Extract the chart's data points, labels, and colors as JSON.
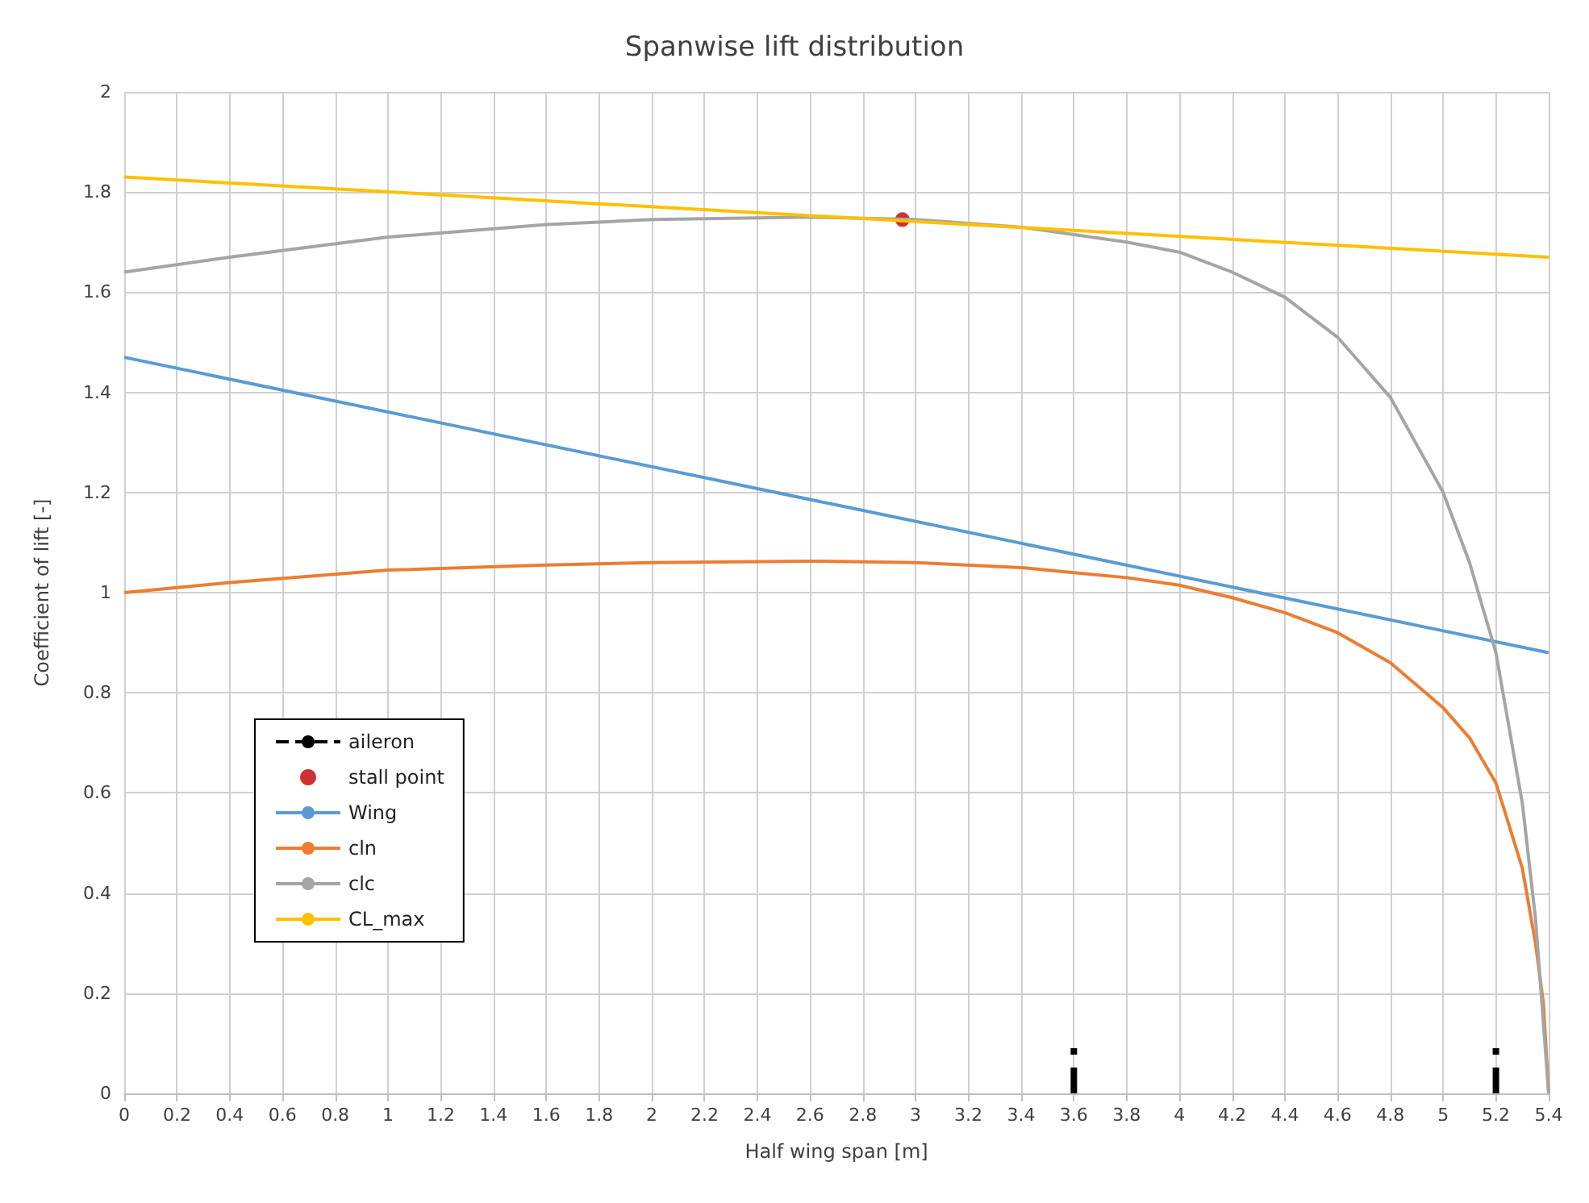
{
  "chart_data": {
    "type": "line",
    "title": "Spanwise lift distribution",
    "xlabel": "Half wing span [m]",
    "ylabel": "Coefficient of lift [-]",
    "xlim": [
      0,
      5.4
    ],
    "xticks": [
      0,
      0.2,
      0.4,
      0.6,
      0.8,
      1,
      1.2,
      1.4,
      1.6,
      1.8,
      2,
      2.2,
      2.4,
      2.6,
      2.8,
      3,
      3.2,
      3.4,
      3.6,
      3.8,
      4,
      4.2,
      4.4,
      4.6,
      4.8,
      5,
      5.2,
      5.4
    ],
    "ylim": [
      0,
      2
    ],
    "yticks": [
      0,
      0.2,
      0.4,
      0.6,
      0.8,
      1,
      1.2,
      1.4,
      1.6,
      1.8,
      2
    ],
    "grid": true,
    "legend": "bottom left",
    "series": [
      {
        "name": "aileron",
        "color": "#000000",
        "line_style": "dashed",
        "marker": "none",
        "x": [
          3.6,
          3.6,
          4.4,
          5.2,
          5.2
        ],
        "values": [
          0,
          0.09,
          null,
          0,
          0.09
        ]
      },
      {
        "name": "stall point",
        "type": "scatter",
        "color": "#c00000",
        "marker": "circle",
        "x": [
          2.95
        ],
        "values": [
          1.745
        ]
      },
      {
        "name": "Wing",
        "color": "#5b9bd5",
        "line_style": "solid",
        "marker": "none",
        "x": [
          0,
          2.7,
          5.4
        ],
        "values": [
          1.47,
          1.175,
          0.88
        ]
      },
      {
        "name": "cln",
        "color": "#ed7d31",
        "line_style": "solid",
        "marker": "none",
        "x": [
          0,
          0.4,
          1,
          1.6,
          2,
          2.6,
          3,
          3.4,
          3.6,
          3.8,
          4,
          4.2,
          4.4,
          4.6,
          4.8,
          5,
          5.1,
          5.2,
          5.3,
          5.35,
          5.38,
          5.4
        ],
        "values": [
          1,
          1.02,
          1.045,
          1.055,
          1.06,
          1.063,
          1.06,
          1.05,
          1.04,
          1.03,
          1.015,
          0.99,
          0.96,
          0.92,
          0.86,
          0.77,
          0.71,
          0.62,
          0.45,
          0.3,
          0.18,
          0
        ]
      },
      {
        "name": "clc",
        "color": "#a5a5a5",
        "line_style": "solid",
        "marker": "none",
        "x": [
          0,
          0.4,
          1,
          1.6,
          2,
          2.6,
          3,
          3.4,
          3.8,
          4,
          4.2,
          4.4,
          4.6,
          4.8,
          5,
          5.1,
          5.2,
          5.3,
          5.35,
          5.4
        ],
        "values": [
          1.64,
          1.67,
          1.71,
          1.735,
          1.745,
          1.75,
          1.745,
          1.73,
          1.7,
          1.68,
          1.64,
          1.59,
          1.51,
          1.39,
          1.2,
          1.06,
          0.88,
          0.58,
          0.35,
          0
        ]
      },
      {
        "name": "CL_max",
        "color": "#ffc000",
        "line_style": "solid",
        "marker": "none",
        "x": [
          0,
          5.4
        ],
        "values": [
          1.83,
          1.67
        ]
      }
    ]
  }
}
